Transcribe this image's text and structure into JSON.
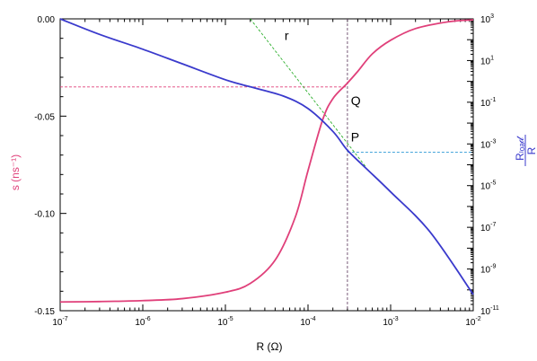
{
  "chart_data": {
    "type": "line",
    "title": "",
    "xlabel": "R (Ω)",
    "ylabel_left": "s  (ns⁻¹)",
    "ylabel_right_num": "Rₗₒₐ𝒹",
    "ylabel_right_den": "R",
    "x_scale": "log",
    "xlim": [
      1e-07,
      0.01
    ],
    "x_ticks": [
      {
        "exp": 7,
        "value": 1e-07,
        "label": "10",
        "sup": "-7"
      },
      {
        "exp": 6,
        "value": 1e-06,
        "label": "10",
        "sup": "-6"
      },
      {
        "exp": 5,
        "value": 1e-05,
        "label": "10",
        "sup": "-5"
      },
      {
        "exp": 4,
        "value": 0.0001,
        "label": "10",
        "sup": "-4"
      },
      {
        "exp": 3,
        "value": 0.001,
        "label": "10",
        "sup": "-3"
      },
      {
        "exp": 2,
        "value": 0.01,
        "label": "10",
        "sup": "-2"
      }
    ],
    "ylim_left": [
      -0.15,
      0.0
    ],
    "y_left_ticks": [
      {
        "value": 0.0,
        "label": "0.00"
      },
      {
        "value": -0.05,
        "label": "-0.05"
      },
      {
        "value": -0.1,
        "label": "-0.10"
      },
      {
        "value": -0.15,
        "label": "-0.15"
      }
    ],
    "y_right_scale": "log",
    "ylim_right": [
      1e-11,
      1000.0
    ],
    "y_right_ticks": [
      {
        "value": 1000.0,
        "label": "10",
        "sup": "3"
      },
      {
        "value": 10.0,
        "label": "10",
        "sup": "1"
      },
      {
        "value": 0.1,
        "label": "10",
        "sup": "-1"
      },
      {
        "value": 0.001,
        "label": "10",
        "sup": "-3"
      },
      {
        "value": 1e-05,
        "label": "10",
        "sup": "-5"
      },
      {
        "value": 1e-07,
        "label": "10",
        "sup": "-7"
      },
      {
        "value": 1e-09,
        "label": "10",
        "sup": "-9"
      },
      {
        "value": 1e-11,
        "label": "10",
        "sup": "-11"
      }
    ],
    "series": [
      {
        "color": "#e0407a",
        "axis": "left",
        "x": [
          1e-07,
          3e-07,
          1e-06,
          3e-06,
          1e-05,
          2e-05,
          4e-05,
          7e-05,
          0.0001,
          0.00015,
          0.0002,
          0.0003,
          0.0004,
          0.0006,
          0.001,
          0.002,
          0.005,
          0.01
        ],
        "y": [
          -0.1455,
          -0.1453,
          -0.1448,
          -0.1438,
          -0.1405,
          -0.136,
          -0.124,
          -0.102,
          -0.078,
          -0.052,
          -0.041,
          -0.033,
          -0.027,
          -0.018,
          -0.011,
          -0.005,
          -0.0015,
          -0.0005
        ]
      },
      {
        "color": "#3a3acc",
        "axis": "right",
        "x": [
          1e-07,
          3e-07,
          1e-06,
          3e-06,
          1e-05,
          2e-05,
          5e-05,
          0.0001,
          0.0002,
          0.0003,
          0.0005,
          0.001,
          0.003,
          0.01
        ],
        "y": [
          1000.0,
          180,
          35,
          7,
          1.2,
          0.55,
          0.2,
          0.05,
          0.004,
          0.0005,
          7e-05,
          5e-06,
          6e-08,
          6e-11
        ]
      }
    ],
    "annotations": [
      {
        "text": "r",
        "x": 5.2e-05,
        "y": 160
      },
      {
        "text": "Q",
        "x": 0.00033,
        "y": 0.12
      },
      {
        "text": "P",
        "x": 0.00033,
        "y": 0.0022
      }
    ],
    "guide_lines": {
      "vertical_x": 0.0003,
      "horizontal_left_y": -0.035,
      "horizontal_right_y": 0.0004,
      "tangent_r": {
        "x": [
          2e-05,
          0.0005
        ],
        "y": [
          1000.0,
          8e-05
        ]
      }
    },
    "colors": {
      "left_series": "#e0407a",
      "right_series": "#3a3acc",
      "horizontal_left": "#e0407a",
      "horizontal_right": "#2f9ad6",
      "tangent": "#2fb02f",
      "vertical": "#6a4a6a"
    }
  }
}
